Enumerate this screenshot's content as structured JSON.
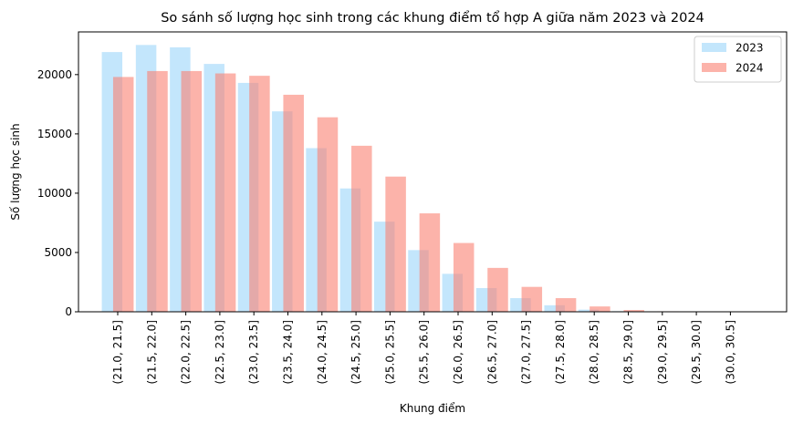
{
  "chart_data": {
    "type": "bar",
    "title": "So sánh số lượng học sinh trong các khung điểm tổ hợp A giữa năm 2023 và 2024",
    "xlabel": "Khung điểm",
    "ylabel": "Số lượng học sinh",
    "categories": [
      "(21.0, 21.5]",
      "(21.5, 22.0]",
      "(22.0, 22.5]",
      "(22.5, 23.0]",
      "(23.0, 23.5]",
      "(23.5, 24.0]",
      "(24.0, 24.5]",
      "(24.5, 25.0]",
      "(25.0, 25.5]",
      "(25.5, 26.0]",
      "(26.0, 26.5]",
      "(26.5, 27.0]",
      "(27.0, 27.5]",
      "(27.5, 28.0]",
      "(28.0, 28.5]",
      "(28.5, 29.0]",
      "(29.0, 29.5]",
      "(29.5, 30.0]",
      "(30.0, 30.5]"
    ],
    "series": [
      {
        "name": "2023",
        "color": "#87cefa",
        "opacity": 0.5,
        "values": [
          21900,
          22500,
          22300,
          20900,
          19300,
          16900,
          13800,
          10400,
          7600,
          5200,
          3200,
          2000,
          1150,
          550,
          180,
          50,
          15,
          5,
          0
        ]
      },
      {
        "name": "2024",
        "color": "#fa8072",
        "opacity": 0.6,
        "values": [
          19800,
          20300,
          20300,
          20100,
          19900,
          18300,
          16400,
          14000,
          11400,
          8300,
          5800,
          3700,
          2100,
          1150,
          450,
          150,
          40,
          10,
          0
        ]
      }
    ],
    "ylim": [
      0,
      23600
    ],
    "yticks": [
      0,
      5000,
      10000,
      15000,
      20000
    ],
    "grid": false,
    "legend_position": "top-right"
  }
}
